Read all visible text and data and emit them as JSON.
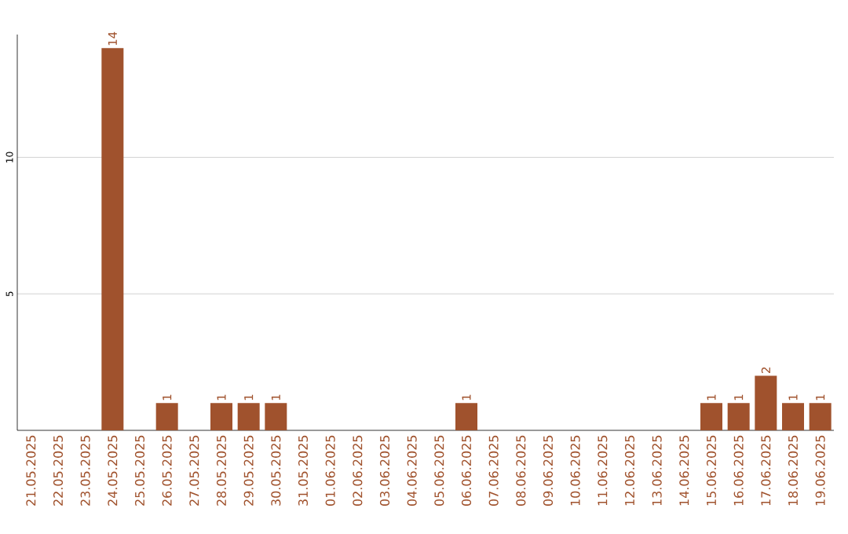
{
  "chart_data": {
    "type": "bar",
    "categories": [
      "21.05.2025",
      "22.05.2025",
      "23.05.2025",
      "24.05.2025",
      "25.05.2025",
      "26.05.2025",
      "27.05.2025",
      "28.05.2025",
      "29.05.2025",
      "30.05.2025",
      "31.05.2025",
      "01.06.2025",
      "02.06.2025",
      "03.06.2025",
      "04.06.2025",
      "05.06.2025",
      "06.06.2025",
      "07.06.2025",
      "08.06.2025",
      "09.06.2025",
      "10.06.2025",
      "11.06.2025",
      "12.06.2025",
      "13.06.2025",
      "14.06.2025",
      "15.06.2025",
      "16.06.2025",
      "17.06.2025",
      "18.06.2025",
      "19.06.2025"
    ],
    "values": [
      0,
      0,
      0,
      14,
      0,
      1,
      0,
      1,
      1,
      1,
      0,
      0,
      0,
      0,
      0,
      0,
      1,
      0,
      0,
      0,
      0,
      0,
      0,
      0,
      0,
      1,
      1,
      2,
      1,
      1
    ],
    "value_labels": [
      null,
      null,
      null,
      "14",
      null,
      "1",
      null,
      "1",
      "1",
      "1",
      null,
      null,
      null,
      null,
      null,
      null,
      "1",
      null,
      null,
      null,
      null,
      null,
      null,
      null,
      null,
      "1",
      "1",
      "2",
      "1",
      "1"
    ],
    "color": "#a0522d",
    "ylim": [
      0,
      14.5
    ],
    "yticks": [
      5,
      10
    ],
    "grid": "y"
  }
}
